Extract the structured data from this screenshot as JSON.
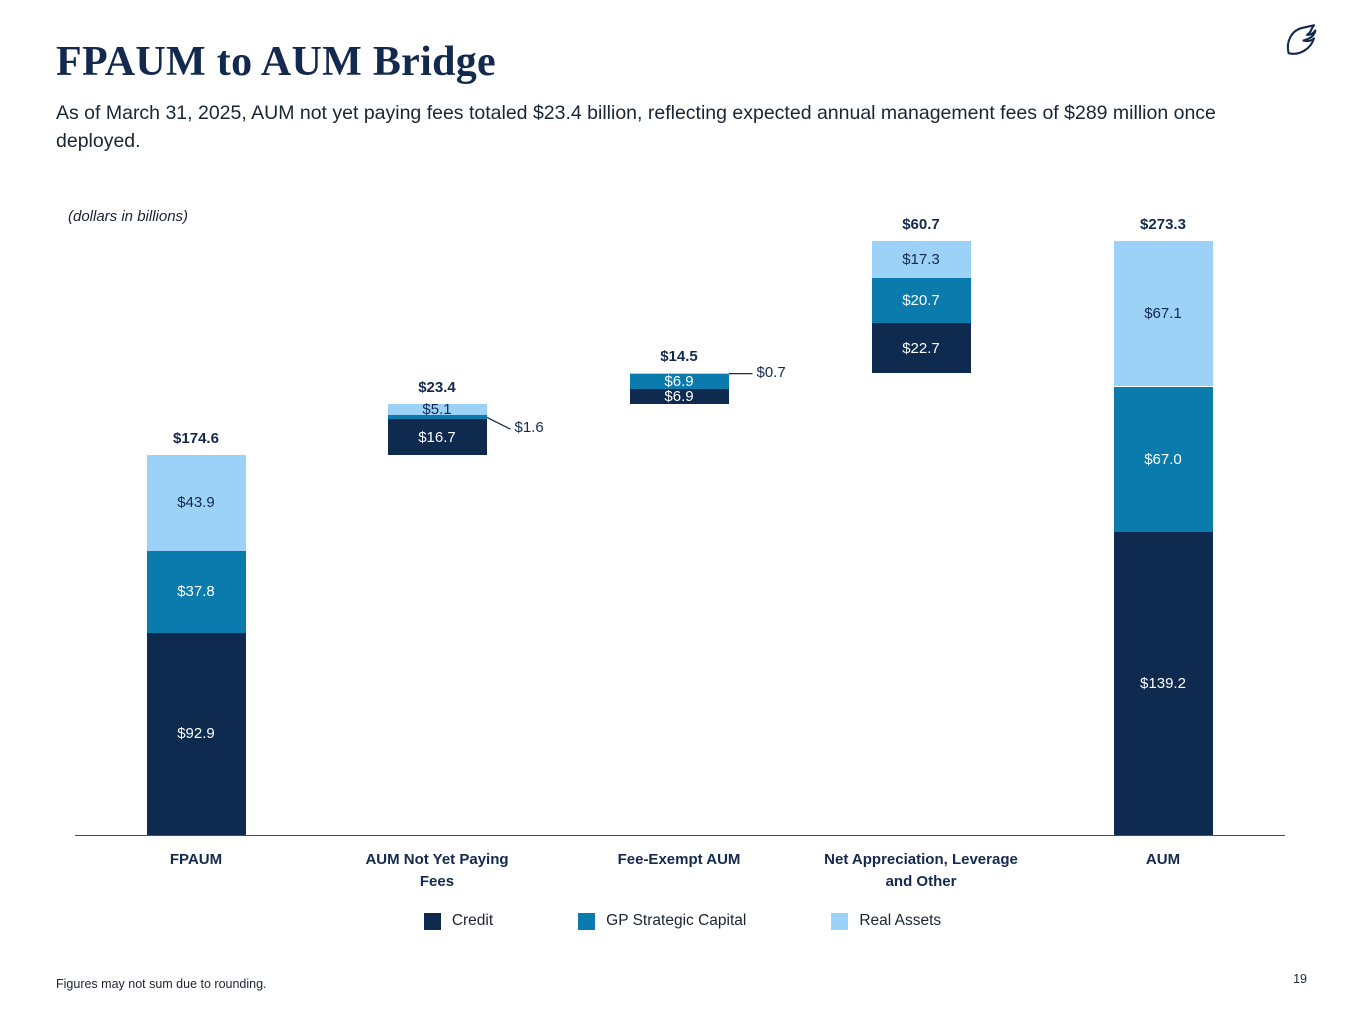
{
  "header": {
    "title": "FPAUM to AUM Bridge",
    "subtitle": "As of March 31, 2025, AUM not yet paying fees totaled $23.4 billion, reflecting expected annual management fees of $289 million once deployed.",
    "logo_icon": "blue-owl-bird"
  },
  "footer": {
    "note": "Figures may not sum due to rounding.",
    "page_number": "19"
  },
  "chart_data": {
    "type": "bar",
    "variant": "stacked-bridge-waterfall",
    "units_label": "(dollars in billions)",
    "categories": [
      "FPAUM",
      "AUM Not Yet Paying Fees",
      "Fee-Exempt AUM",
      "Net Appreciation, Leverage and Other",
      "AUM"
    ],
    "category_lines": [
      [
        "FPAUM"
      ],
      [
        "AUM Not Yet Paying",
        "Fees"
      ],
      [
        "Fee-Exempt AUM"
      ],
      [
        "Net Appreciation, Leverage",
        "and Other"
      ],
      [
        "AUM"
      ]
    ],
    "bar_offsets": [
      0,
      174.6,
      198.0,
      212.5,
      0
    ],
    "series": [
      {
        "name": "Credit",
        "color": "#0e2a4e",
        "label_color": "#ffffff",
        "values": [
          92.9,
          16.7,
          6.9,
          22.7,
          139.2
        ]
      },
      {
        "name": "GP Strategic Capital",
        "color": "#0b7bad",
        "label_color": "#ffffff",
        "values": [
          37.8,
          1.6,
          6.9,
          20.7,
          67.0
        ]
      },
      {
        "name": "Real Assets",
        "color": "#9cd2f7",
        "label_color": "#13294e",
        "values": [
          43.9,
          5.1,
          0.7,
          17.3,
          67.1
        ]
      }
    ],
    "totals": [
      "$174.6",
      "$23.4",
      "$14.5",
      "$60.7",
      "$273.3"
    ],
    "segment_labels": [
      [
        "$92.9",
        "$37.8",
        "$43.9"
      ],
      [
        "$16.7",
        null,
        "$5.1"
      ],
      [
        "$6.9",
        "$6.9",
        null
      ],
      [
        "$22.7",
        "$20.7",
        "$17.3"
      ],
      [
        "$139.2",
        "$67.0",
        "$67.1"
      ]
    ],
    "callouts": [
      {
        "bar": 1,
        "series": 1,
        "label": "$1.6",
        "label_dy": 12
      },
      {
        "bar": 2,
        "series": 2,
        "label": "$0.7",
        "label_dy": 0
      }
    ],
    "legend_position": "bottom",
    "grid": false,
    "ylim": [
      0,
      280
    ],
    "accent_color": "#13294e"
  }
}
